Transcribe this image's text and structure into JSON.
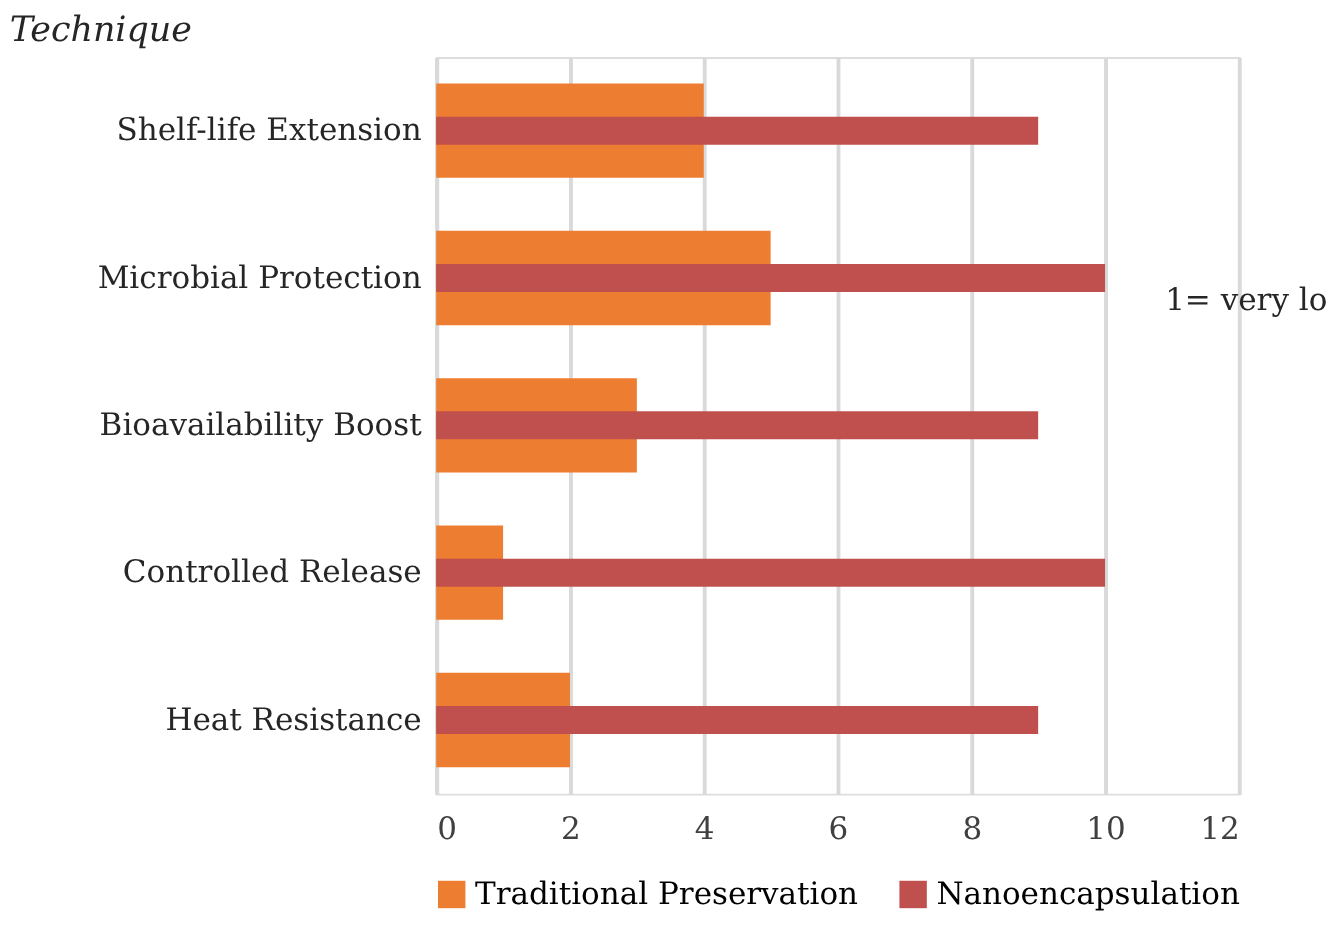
{
  "chart_data": {
    "type": "bar",
    "orientation": "horizontal",
    "title": "Technique",
    "categories": [
      "Shelf-life Extension",
      "Microbial Protection",
      "Bioavailability Boost",
      "Controlled Release",
      "Heat Resistance"
    ],
    "series": [
      {
        "name": "Traditional Preservation",
        "color": "#ed7d31",
        "values": [
          4,
          5,
          3,
          1,
          2
        ]
      },
      {
        "name": "Nanoencapsulation",
        "color": "#c0504d",
        "values": [
          9,
          10,
          9,
          10,
          9
        ]
      }
    ],
    "xlim": [
      0,
      12
    ],
    "xticks": [
      0,
      2,
      4,
      6,
      8,
      10,
      12
    ],
    "grid": "x",
    "legend": "bottom",
    "annotations": [
      "1= very lo"
    ]
  }
}
